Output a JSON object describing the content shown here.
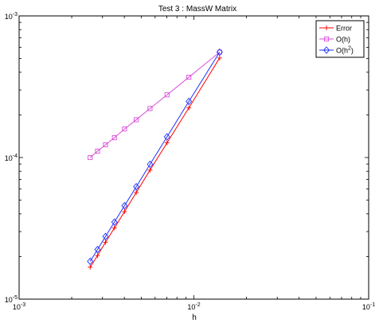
{
  "chart_data": {
    "type": "line",
    "title": "Test 3 : MassW Matrix",
    "xlabel": "h",
    "ylabel": "",
    "xscale": "log",
    "yscale": "log",
    "xlim": [
      0.001,
      0.1
    ],
    "ylim": [
      1e-05,
      0.001
    ],
    "grid": false,
    "legend_position": "top-right",
    "x_ticks": [
      {
        "value": 0.001,
        "base": "10",
        "exp": "-3"
      },
      {
        "value": 0.01,
        "base": "10",
        "exp": "-2"
      },
      {
        "value": 0.1,
        "base": "10",
        "exp": "-1"
      }
    ],
    "y_ticks": [
      {
        "value": 1e-05,
        "base": "10",
        "exp": "-5"
      },
      {
        "value": 0.0001,
        "base": "10",
        "exp": "-4"
      },
      {
        "value": 0.001,
        "base": "10",
        "exp": "-3"
      }
    ],
    "series": [
      {
        "name": "Error",
        "label_base": "Error",
        "label_sup": "",
        "color": "#ff0000",
        "marker": "plus",
        "points": [
          [
            0.00255,
            1.68e-05
          ],
          [
            0.00281,
            2.03e-05
          ],
          [
            0.00312,
            2.52e-05
          ],
          [
            0.00351,
            3.18e-05
          ],
          [
            0.00401,
            4.15e-05
          ],
          [
            0.00468,
            5.66e-05
          ],
          [
            0.00561,
            8.15e-05
          ],
          [
            0.00702,
            0.000127
          ],
          [
            0.00936,
            0.000224
          ],
          [
            0.01404,
            0.000505
          ]
        ]
      },
      {
        "name": "O(h)",
        "label_base": "O(h)",
        "label_sup": "",
        "color": "#d94fd9",
        "marker": "square",
        "points": [
          [
            0.00255,
            0.0001
          ],
          [
            0.00281,
            0.000111
          ],
          [
            0.00312,
            0.000123
          ],
          [
            0.00351,
            0.000138
          ],
          [
            0.00401,
            0.000159
          ],
          [
            0.00468,
            0.000185
          ],
          [
            0.00561,
            0.000222
          ],
          [
            0.00702,
            0.000277
          ],
          [
            0.00936,
            0.000369
          ],
          [
            0.01404,
            0.000555
          ]
        ]
      },
      {
        "name": "O(h^2)",
        "label_base": "O(h",
        "label_sup": "2",
        "label_tail": ")",
        "color": "#1f2fff",
        "marker": "diamond",
        "points": [
          [
            0.00255,
            1.85e-05
          ],
          [
            0.00281,
            2.24e-05
          ],
          [
            0.00312,
            2.77e-05
          ],
          [
            0.00351,
            3.5e-05
          ],
          [
            0.00401,
            4.57e-05
          ],
          [
            0.00468,
            6.22e-05
          ],
          [
            0.00561,
            8.96e-05
          ],
          [
            0.00702,
            0.00014
          ],
          [
            0.00936,
            0.000249
          ],
          [
            0.01404,
            0.000555
          ]
        ]
      }
    ]
  }
}
